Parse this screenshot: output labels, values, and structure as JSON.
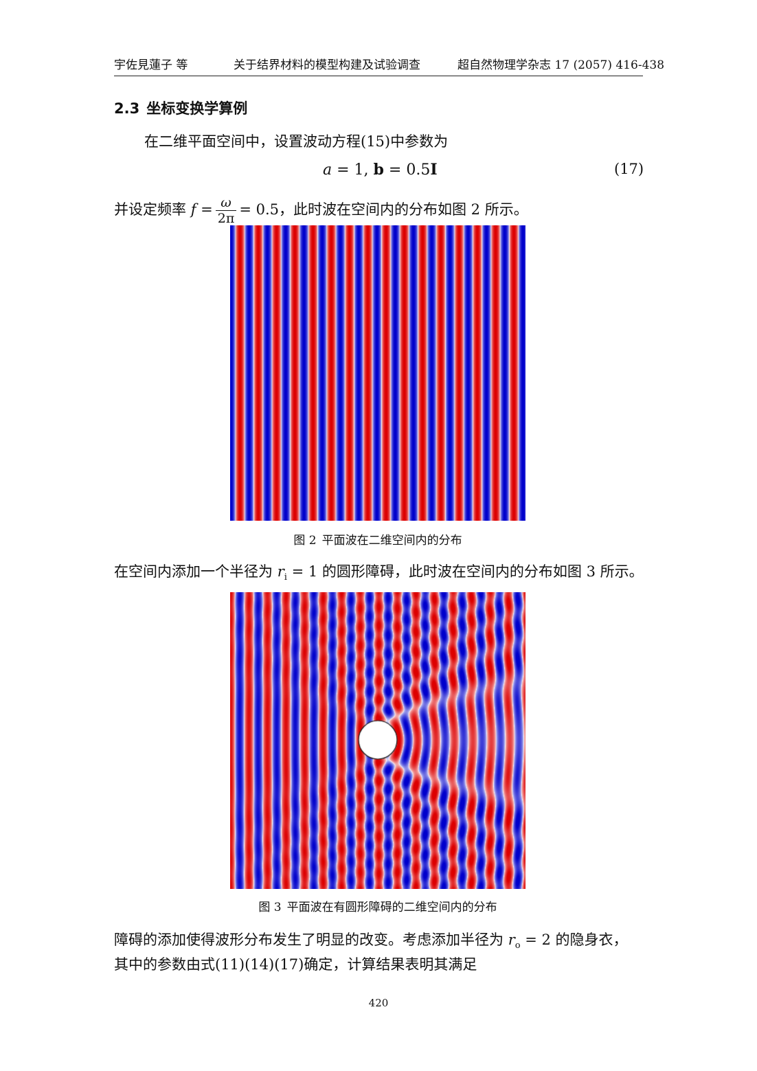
{
  "header": {
    "authors": "宇佐見蓮子 等",
    "title": "关于结界材料的模型构建及试验调查",
    "journal": "超自然物理学杂志 17 (2057) 416-438"
  },
  "section": {
    "number": "2.3",
    "title": "坐标变换学算例"
  },
  "para1": {
    "text": "在二维平面空间中，设置波动方程(15)中参数为"
  },
  "equation17": {
    "a_sym": "a",
    "a_rest": " = 1, ",
    "b_sym": "b",
    "b_mid": " = 0.5",
    "b_I": "I",
    "number": "(17)"
  },
  "para2": {
    "lead": "并设定频率 ",
    "f": "f",
    "eq": " =",
    "num": "ω",
    "den": "2π",
    "value": "= 0.5",
    "tail": "，此时波在空间内的分布如图 2 所示。"
  },
  "figure2": {
    "label": "图 2",
    "caption": "平面波在二维空间内的分布",
    "colors": {
      "positive": "#dd0000",
      "negative": "#0000cc",
      "zero": "#ffffff"
    },
    "stripe_period_fraction": 0.0618
  },
  "para3": {
    "lead": "在空间内添加一个半径为 ",
    "r": "r",
    "sub": "i",
    "eq": " = 1",
    "tail": " 的圆形障碍，此时波在空间内的分布如图 3 所示。"
  },
  "figure3": {
    "label": "图 3",
    "caption": "平面波在有圆形障碍的二维空间内的分布",
    "colors": {
      "positive": "#dd0000",
      "negative": "#0000cc",
      "zero": "#ffffff",
      "obstacle": "#ffffff"
    }
  },
  "para4": {
    "line1_lead": "障碍的添加使得波形分布发生了明显的改变。考虑添加半径为 ",
    "r": "r",
    "sub": "o",
    "eq": " = 2",
    "line1_tail": " 的隐身衣，",
    "line2": "其中的参数由式(11)(14)(17)确定，计算结果表明其满足"
  },
  "page_number": "420"
}
